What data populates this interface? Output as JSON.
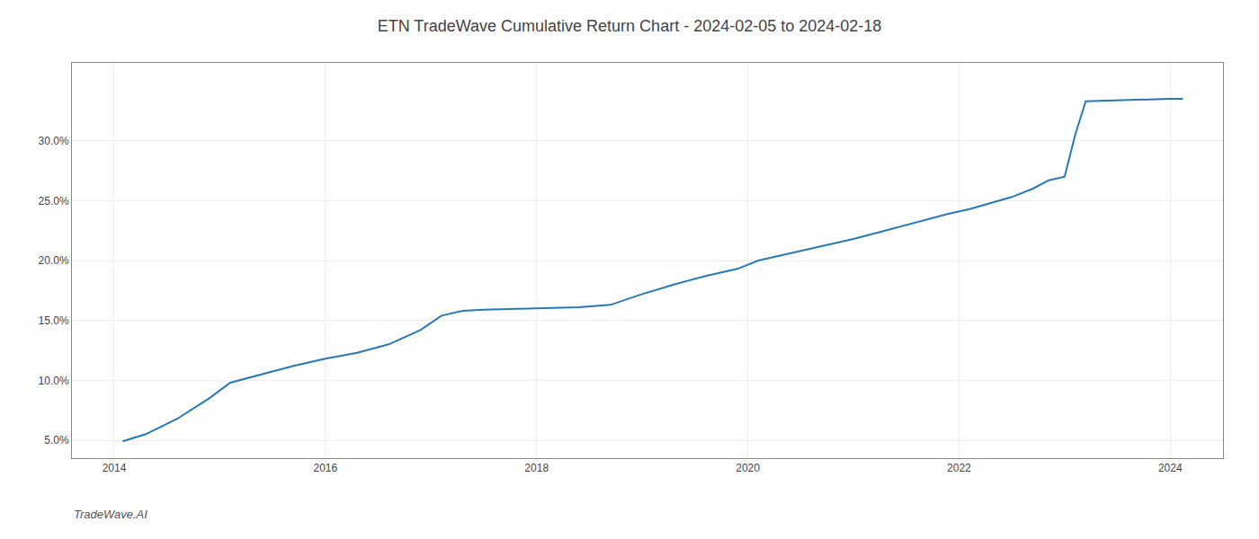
{
  "chart_data": {
    "type": "line",
    "title": "ETN TradeWave Cumulative Return Chart - 2024-02-05 to 2024-02-18",
    "annotations": [
      "TradeWave.AI"
    ],
    "x": [
      2014.08,
      2014.3,
      2014.6,
      2014.9,
      2015.1,
      2015.4,
      2015.7,
      2016.0,
      2016.3,
      2016.6,
      2016.9,
      2017.1,
      2017.3,
      2017.5,
      2017.7,
      2017.9,
      2018.1,
      2018.4,
      2018.7,
      2019.0,
      2019.3,
      2019.6,
      2019.9,
      2020.1,
      2020.4,
      2020.7,
      2021.0,
      2021.3,
      2021.6,
      2021.9,
      2022.1,
      2022.3,
      2022.5,
      2022.7,
      2022.85,
      2023.0,
      2023.1,
      2023.2,
      2023.9,
      2024.0,
      2024.12
    ],
    "values": [
      4.9,
      5.5,
      6.8,
      8.5,
      9.8,
      10.5,
      11.2,
      11.8,
      12.3,
      13.0,
      14.2,
      15.4,
      15.8,
      15.9,
      15.95,
      16.0,
      16.05,
      16.1,
      16.3,
      17.2,
      18.0,
      18.7,
      19.3,
      20.0,
      20.6,
      21.2,
      21.8,
      22.5,
      23.2,
      23.9,
      24.3,
      24.8,
      25.3,
      26.0,
      26.7,
      27.0,
      30.5,
      33.3,
      33.5,
      33.5,
      33.5
    ],
    "color": "#2878b5",
    "xlim": [
      2013.6,
      2024.5
    ],
    "ylim": [
      3.5,
      36.5
    ],
    "xticks": [
      2014,
      2016,
      2018,
      2020,
      2022,
      2024
    ],
    "yticks": [
      {
        "value": 5.0,
        "label": "5.0%"
      },
      {
        "value": 10.0,
        "label": "10.0%"
      },
      {
        "value": 15.0,
        "label": "15.0%"
      },
      {
        "value": 20.0,
        "label": "20.0%"
      },
      {
        "value": 25.0,
        "label": "25.0%"
      },
      {
        "value": 30.0,
        "label": "30.0%"
      }
    ],
    "grid": true
  }
}
